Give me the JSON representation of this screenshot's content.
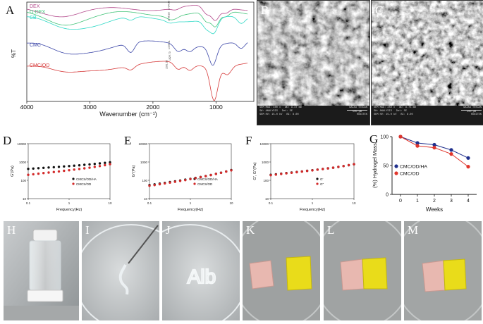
{
  "panels": {
    "A": {
      "label": "A",
      "ylabel": "%T",
      "xlabel": "Wavenumber (cm⁻¹)",
      "xticks": [
        "4000",
        "3000",
        "2000",
        "1000"
      ],
      "series_labels": [
        "DEX",
        "O-DEX",
        "CB",
        "CMC",
        "CMC/OD"
      ],
      "peak_labels": [
        "1734.33",
        "1735.22",
        "1729.41",
        "1629.73",
        "1591.55"
      ],
      "colors": {
        "DEX": "#b34a8c",
        "O-DEX": "#44c47a",
        "CB": "#2fd9c6",
        "CMC": "#3c47a8",
        "CMC/OD": "#d63a3a"
      }
    },
    "B": {
      "label": "B",
      "info": {
        "row1": [
          "SEM MAG: 100 x",
          "WD: 9.47 mm",
          "GAIA3 TESCAN"
        ],
        "row2": [
          "SW: ANALYSIS",
          "Det: SE",
          "500 μm"
        ],
        "row3": [
          "SEM HV: 15.0 kV",
          "BI: 8.00",
          "HUNITEK"
        ]
      }
    },
    "C": {
      "label": "C",
      "info": {
        "row1": [
          "SEM MAG: 250 x",
          "WD: 9.75 mm",
          "GAIA3 TESCAN"
        ],
        "row2": [
          "SW: ANALYSIS",
          "Det: SE",
          "200 μm"
        ],
        "row3": [
          "SEM HV: 15.0 kV",
          "BI: 8.00",
          "HUNITEK"
        ]
      }
    },
    "D": {
      "label": "D",
      "ylabel": "G'(Pa)",
      "xlabel": "Frequency(Hz)",
      "yticks": [
        "10000",
        "1000",
        "100",
        "10"
      ],
      "xticks": [
        "0.1",
        "1",
        "10"
      ],
      "legend": [
        "CMCS/OD/HA",
        "CMCS/OD"
      ]
    },
    "E": {
      "label": "E",
      "ylabel": "G''(Pa)",
      "xlabel": "Frequency(Hz)",
      "yticks": [
        "10000",
        "1000",
        "100",
        "10"
      ],
      "xticks": [
        "0.1",
        "1",
        "10"
      ],
      "legend": [
        "CMCS/OD/HA",
        "CMCS/OD"
      ]
    },
    "F": {
      "label": "F",
      "ylabel": "G', G''(Pa)",
      "xlabel": "Frequency(Hz)",
      "yticks": [
        "10000",
        "1000",
        "100",
        "10"
      ],
      "xticks": [
        "0.1",
        "1",
        "10"
      ],
      "legend": [
        "G'",
        "G''"
      ]
    },
    "G": {
      "label": "G",
      "ylabel": "(%) Hydrogel Mass",
      "xlabel": "Weeks"
    },
    "H": {
      "label": "H"
    },
    "I": {
      "label": "I"
    },
    "J": {
      "label": "J",
      "text_in_gel": "Alb"
    },
    "K": {
      "label": "K"
    },
    "L": {
      "label": "L"
    },
    "M": {
      "label": "M"
    }
  },
  "chart_data": [
    {
      "panel": "G",
      "type": "line",
      "title": "",
      "xlabel": "Weeks",
      "ylabel": "(%) Hydrogel Mass",
      "x": [
        0,
        1,
        2,
        3,
        4
      ],
      "xlim": [
        -0.5,
        4.5
      ],
      "ylim": [
        0,
        100
      ],
      "yticks": [
        0,
        50,
        100
      ],
      "series": [
        {
          "name": "CMC/OD/HA",
          "color": "#1f2f8c",
          "values": [
            100,
            89,
            86,
            77,
            63
          ]
        },
        {
          "name": "CMC/OD",
          "color": "#e0352b",
          "values": [
            100,
            84,
            81,
            70,
            48
          ]
        }
      ],
      "legend": "center-left"
    },
    {
      "panel": "D",
      "type": "scatter",
      "xscale": "log",
      "yscale": "log",
      "xlim": [
        0.1,
        10
      ],
      "ylim": [
        10,
        10000
      ],
      "series": [
        {
          "name": "CMCS/OD/HA",
          "color": "#111111",
          "x": [
            0.1,
            0.133,
            0.178,
            0.237,
            0.316,
            0.422,
            0.562,
            0.75,
            1.0,
            1.33,
            1.78,
            2.37,
            3.16,
            4.22,
            5.62,
            7.5,
            10
          ],
          "y": [
            420,
            440,
            460,
            480,
            500,
            520,
            545,
            570,
            600,
            630,
            660,
            700,
            740,
            790,
            840,
            900,
            960
          ]
        },
        {
          "name": "CMCS/OD",
          "color": "#d32a2a",
          "x": [
            0.1,
            0.133,
            0.178,
            0.237,
            0.316,
            0.422,
            0.562,
            0.75,
            1.0,
            1.33,
            1.78,
            2.37,
            3.16,
            4.22,
            5.62,
            7.5,
            10
          ],
          "y": [
            200,
            215,
            230,
            248,
            265,
            285,
            305,
            330,
            355,
            385,
            415,
            450,
            490,
            540,
            600,
            670,
            760
          ]
        }
      ]
    },
    {
      "panel": "E",
      "type": "scatter",
      "xscale": "log",
      "yscale": "log",
      "xlim": [
        0.1,
        10
      ],
      "ylim": [
        10,
        10000
      ],
      "series": [
        {
          "name": "CMCS/OD/HA",
          "color": "#111111",
          "x": [
            0.1,
            0.133,
            0.178,
            0.237,
            0.316,
            0.422,
            0.562,
            0.75,
            1.0,
            1.33,
            1.78,
            2.37,
            3.16,
            4.22,
            5.62,
            7.5,
            10
          ],
          "y": [
            55,
            60,
            66,
            72,
            80,
            88,
            97,
            108,
            120,
            135,
            152,
            172,
            195,
            225,
            260,
            305,
            360
          ]
        },
        {
          "name": "CMCS/OD",
          "color": "#d32a2a",
          "x": [
            0.1,
            0.133,
            0.178,
            0.237,
            0.316,
            0.422,
            0.562,
            0.75,
            1.0,
            1.33,
            1.78,
            2.37,
            3.16,
            4.22,
            5.62,
            7.5,
            10
          ],
          "y": [
            50,
            55,
            61,
            68,
            75,
            83,
            92,
            103,
            116,
            131,
            148,
            168,
            192,
            222,
            258,
            300,
            350
          ]
        }
      ]
    },
    {
      "panel": "F",
      "type": "scatter",
      "xscale": "log",
      "yscale": "log",
      "xlim": [
        0.1,
        10
      ],
      "ylim": [
        10,
        10000
      ],
      "series": [
        {
          "name": "G'",
          "color": "#111111",
          "x": [
            0.1,
            0.133,
            0.178,
            0.237,
            0.316,
            0.422,
            0.562,
            0.75,
            1.0,
            1.33,
            1.78,
            2.37,
            3.16,
            4.22,
            5.62,
            7.5,
            10
          ],
          "y": [
            200,
            215,
            230,
            248,
            265,
            285,
            305,
            330,
            355,
            385,
            415,
            450,
            490,
            540,
            600,
            670,
            760
          ]
        },
        {
          "name": "G''",
          "color": "#d32a2a",
          "x": [
            0.1,
            0.133,
            0.178,
            0.237,
            0.316,
            0.422,
            0.562,
            0.75,
            1.0,
            1.33,
            1.78,
            2.37,
            3.16,
            4.22,
            5.62,
            7.5,
            10
          ],
          "y": [
            190,
            205,
            222,
            240,
            258,
            278,
            300,
            325,
            350,
            380,
            412,
            448,
            490,
            540,
            600,
            670,
            760
          ]
        }
      ]
    }
  ]
}
